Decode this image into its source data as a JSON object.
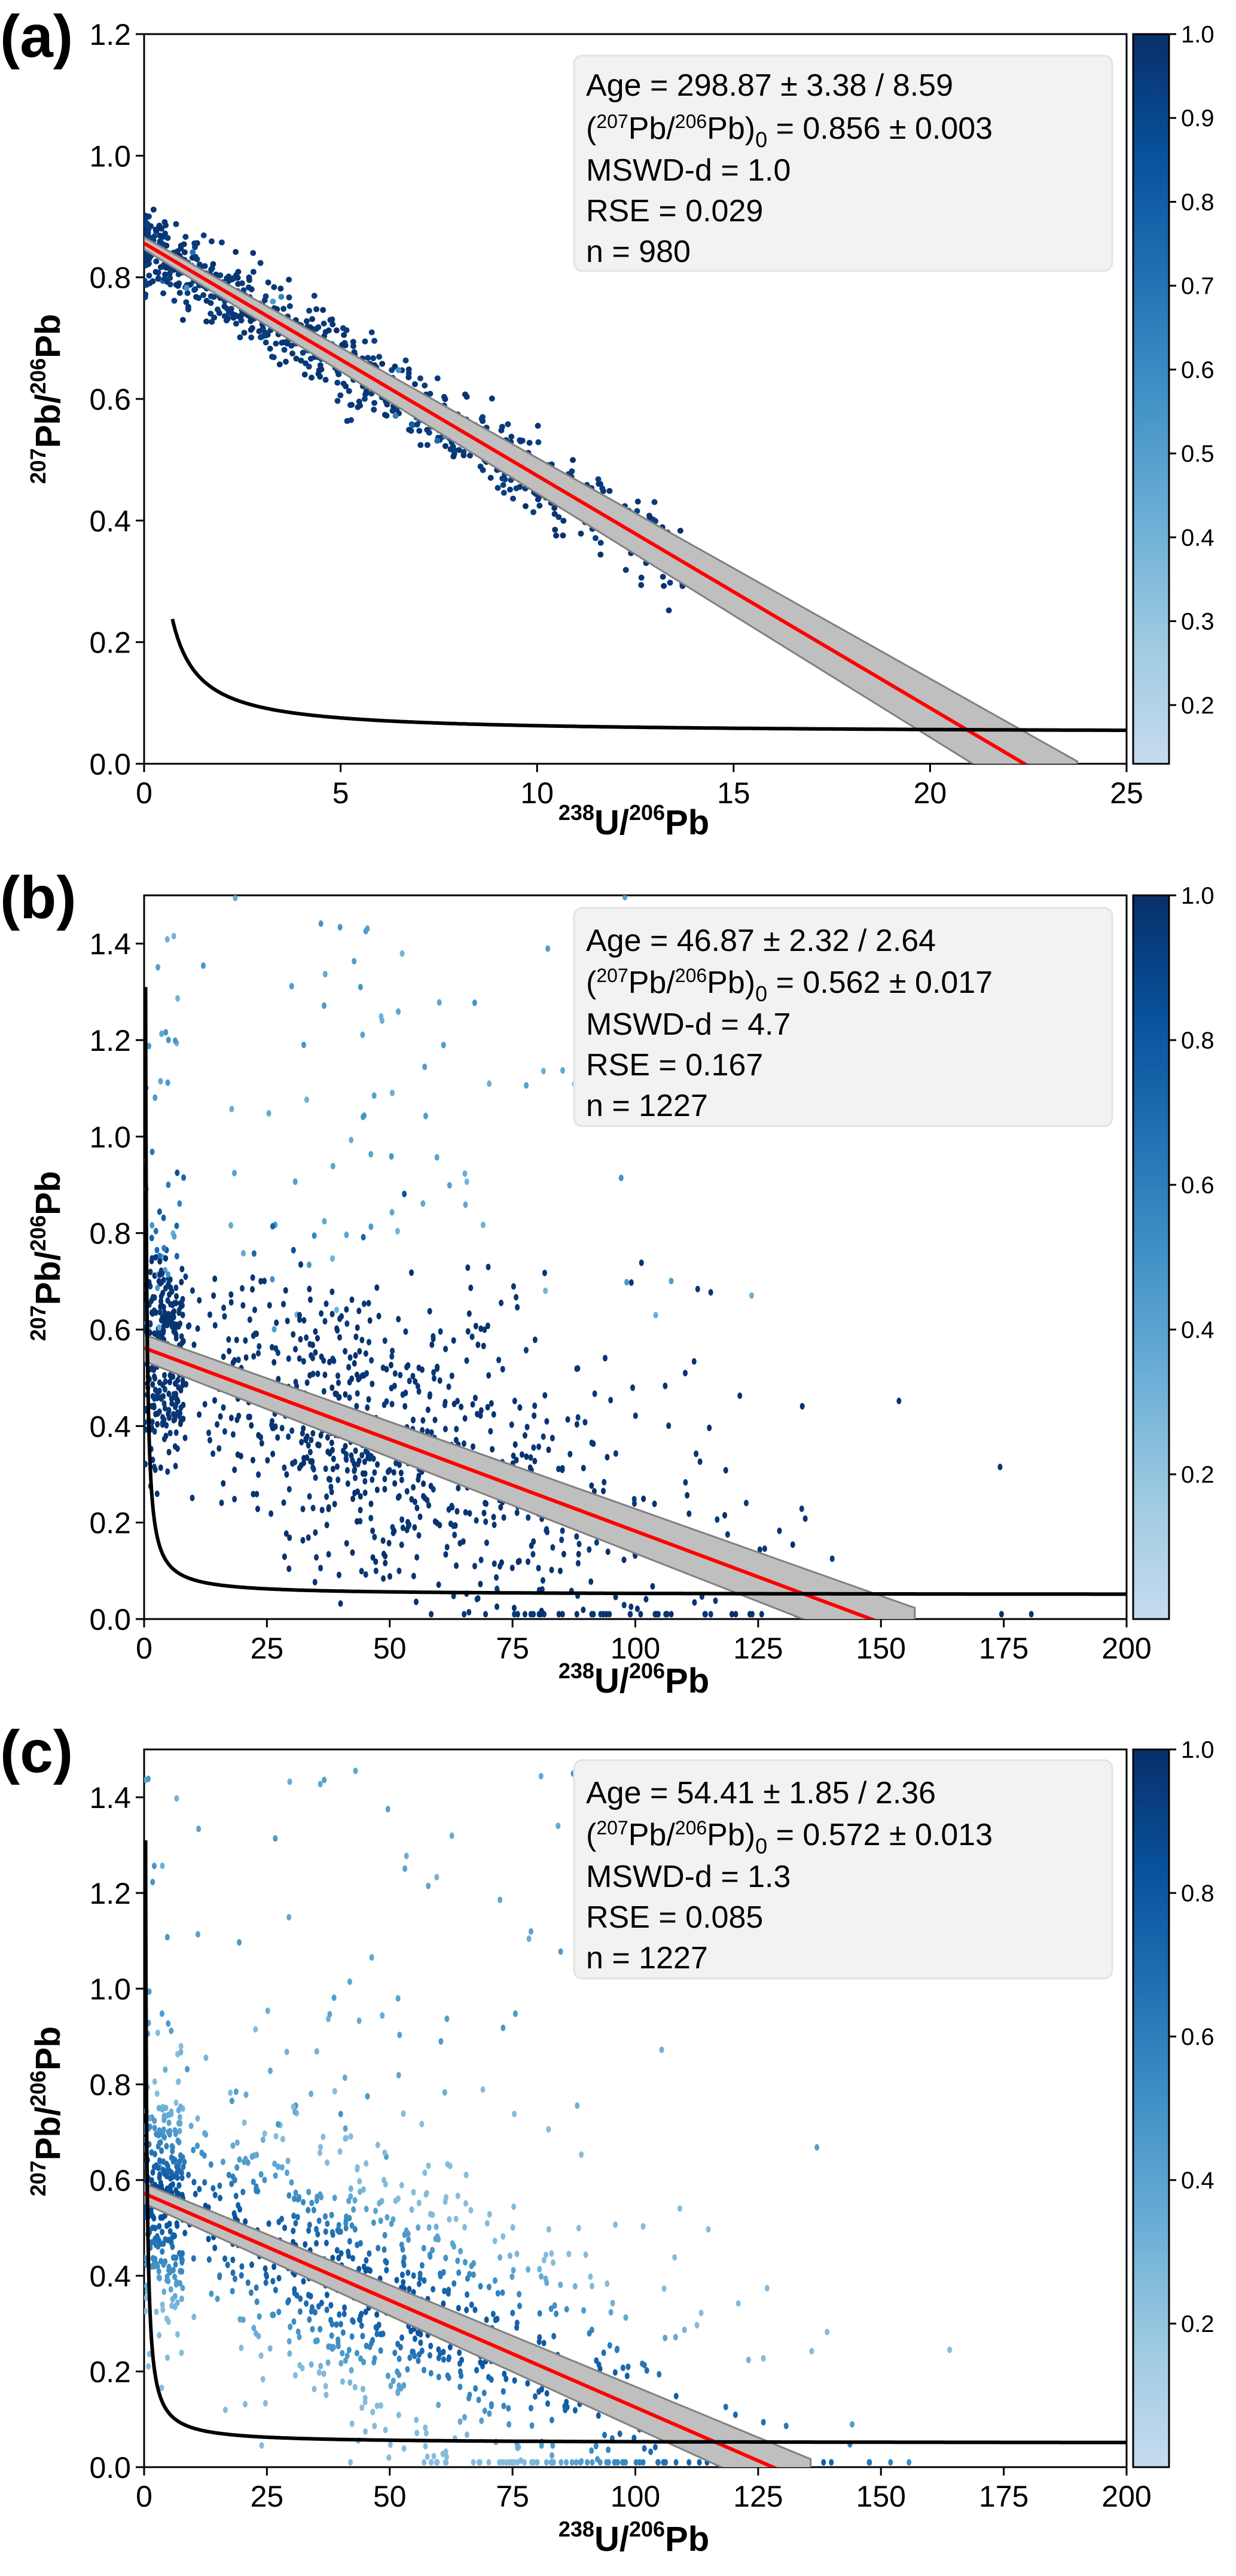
{
  "colors": {
    "fit_line": "#ff0000",
    "fit_band": "#bfbfbf",
    "fit_band_edge": "#808080",
    "concordia": "#000000",
    "annotation_bg": "#f2f2f2",
    "colormap": [
      "#c6dbef",
      "#9ecae1",
      "#6baed6",
      "#4292c6",
      "#2171b5",
      "#08519c",
      "#08306b"
    ]
  },
  "chart_data": [
    {
      "panel_label": "(a)",
      "type": "scatter",
      "xlabel": {
        "sup1": "238",
        "base1": "U/",
        "sup2": "206",
        "base2": "Pb"
      },
      "ylabel": {
        "sup1": "207",
        "base1": "Pb/",
        "sup2": "206",
        "base2": "Pb"
      },
      "xlim": [
        0,
        25
      ],
      "ylim": [
        0,
        1.2
      ],
      "xticks": [
        "0",
        "5",
        "10",
        "15",
        "20",
        "25"
      ],
      "xtick_values": [
        0,
        5,
        10,
        15,
        20,
        25
      ],
      "yticks": [
        "0.0",
        "0.2",
        "0.4",
        "0.6",
        "0.8",
        "1.0",
        "1.2"
      ],
      "ytick_values": [
        0,
        0.2,
        0.4,
        0.6,
        0.8,
        1.0,
        1.2
      ],
      "colorbar": {
        "range": [
          0.13,
          1.0
        ],
        "ticks": [
          "0.2",
          "0.3",
          "0.4",
          "0.5",
          "0.6",
          "0.7",
          "0.8",
          "0.9",
          "1.0"
        ],
        "tick_values": [
          0.2,
          0.3,
          0.4,
          0.5,
          0.6,
          0.7,
          0.8,
          0.9,
          1.0
        ]
      },
      "fit": {
        "intercept": 0.856,
        "x_intercept": 22.4,
        "band_halfwidth": 0.01
      },
      "concordia_asymptote": 0.05,
      "scatter": {
        "n": 980,
        "x_range": [
          0,
          14
        ],
        "spread": 0.03,
        "outlier_fraction": 0.03,
        "weight_mode": "high"
      },
      "annotation": {
        "age": "Age = 298.87 ± 3.38 / 8.59",
        "ratio_prefix": "(",
        "ratio_sup1": "207",
        "ratio_mid1": "Pb/",
        "ratio_sup2": "206",
        "ratio_mid2": "Pb)",
        "ratio_sub": "0",
        "ratio_value": " = 0.856 ± 0.003",
        "mswd": "MSWD-d = 1.0",
        "rse": "RSE = 0.029",
        "n": "n = 980"
      }
    },
    {
      "panel_label": "(b)",
      "type": "scatter",
      "xlabel": {
        "sup1": "238",
        "base1": "U/",
        "sup2": "206",
        "base2": "Pb"
      },
      "ylabel": {
        "sup1": "207",
        "base1": "Pb/",
        "sup2": "206",
        "base2": "Pb"
      },
      "xlim": [
        0,
        200
      ],
      "ylim": [
        0,
        1.5
      ],
      "xticks": [
        "0",
        "25",
        "50",
        "75",
        "100",
        "125",
        "150",
        "175",
        "200"
      ],
      "xtick_values": [
        0,
        25,
        50,
        75,
        100,
        125,
        150,
        175,
        200
      ],
      "yticks": [
        "0.0",
        "0.2",
        "0.4",
        "0.6",
        "0.8",
        "1.0",
        "1.2",
        "1.4"
      ],
      "ytick_values": [
        0,
        0.2,
        0.4,
        0.6,
        0.8,
        1.0,
        1.2,
        1.4
      ],
      "colorbar": {
        "range": [
          0.0,
          1.0
        ],
        "ticks": [
          "0.2",
          "0.4",
          "0.6",
          "0.8",
          "1.0"
        ],
        "tick_values": [
          0.2,
          0.4,
          0.6,
          0.8,
          1.0
        ]
      },
      "fit": {
        "intercept": 0.562,
        "x_intercept": 148,
        "band_halfwidth": 0.017
      },
      "concordia_asymptote": 0.05,
      "scatter": {
        "n": 1227,
        "x_range": [
          0,
          190
        ],
        "spread": 0.12,
        "outlier_fraction": 0.08,
        "weight_mode": "high"
      },
      "annotation": {
        "age": "Age = 46.87 ± 2.32 / 2.64",
        "ratio_prefix": "(",
        "ratio_sup1": "207",
        "ratio_mid1": "Pb/",
        "ratio_sup2": "206",
        "ratio_mid2": "Pb)",
        "ratio_sub": "0",
        "ratio_value": " = 0.562 ± 0.017",
        "mswd": "MSWD-d = 4.7",
        "rse": "RSE = 0.167",
        "n": "n = 1227"
      }
    },
    {
      "panel_label": "(c)",
      "type": "scatter",
      "xlabel": {
        "sup1": "238",
        "base1": "U/",
        "sup2": "206",
        "base2": "Pb"
      },
      "ylabel": {
        "sup1": "207",
        "base1": "Pb/",
        "sup2": "206",
        "base2": "Pb"
      },
      "xlim": [
        0,
        200
      ],
      "ylim": [
        0,
        1.5
      ],
      "xticks": [
        "0",
        "25",
        "50",
        "75",
        "100",
        "125",
        "150",
        "175",
        "200"
      ],
      "xtick_values": [
        0,
        25,
        50,
        75,
        100,
        125,
        150,
        175,
        200
      ],
      "yticks": [
        "0.0",
        "0.2",
        "0.4",
        "0.6",
        "0.8",
        "1.0",
        "1.2",
        "1.4"
      ],
      "ytick_values": [
        0,
        0.2,
        0.4,
        0.6,
        0.8,
        1.0,
        1.2,
        1.4
      ],
      "colorbar": {
        "range": [
          0.0,
          1.0
        ],
        "ticks": [
          "0.2",
          "0.4",
          "0.6",
          "0.8",
          "1.0"
        ],
        "tick_values": [
          0.2,
          0.4,
          0.6,
          0.8,
          1.0
        ]
      },
      "fit": {
        "intercept": 0.572,
        "x_intercept": 128,
        "band_halfwidth": 0.013
      },
      "concordia_asymptote": 0.05,
      "scatter": {
        "n": 1227,
        "x_range": [
          0,
          190
        ],
        "spread": 0.12,
        "outlier_fraction": 0.08,
        "weight_mode": "graded"
      },
      "annotation": {
        "age": "Age = 54.41 ± 1.85 / 2.36",
        "ratio_prefix": "(",
        "ratio_sup1": "207",
        "ratio_mid1": "Pb/",
        "ratio_sup2": "206",
        "ratio_mid2": "Pb)",
        "ratio_sub": "0",
        "ratio_value": " = 0.572 ± 0.013",
        "mswd": "MSWD-d = 1.3",
        "rse": "RSE = 0.085",
        "n": "n = 1227"
      }
    }
  ]
}
